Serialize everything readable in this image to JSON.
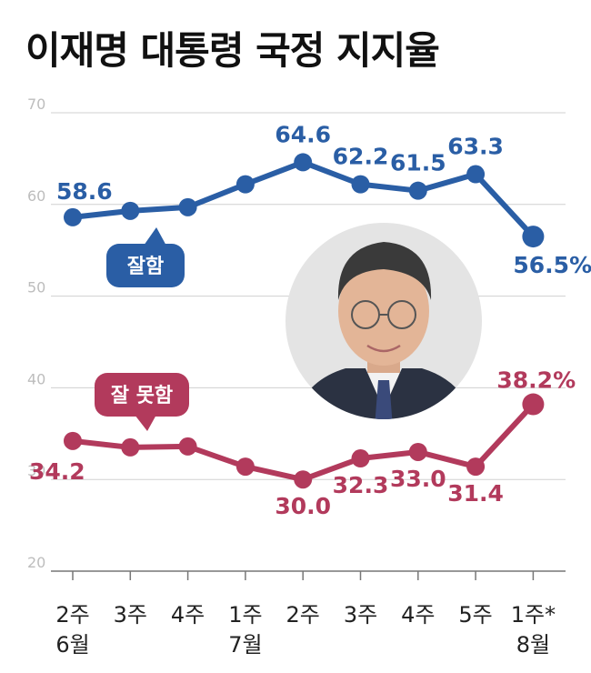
{
  "title": "이재명 대통령 국정 지지율",
  "colors": {
    "good": "#2a5ea5",
    "bad": "#b23a5c",
    "grid": "#d0d0d0",
    "axis": "#777777"
  },
  "chart_data": {
    "type": "line",
    "categories": [
      "2주|6월",
      "3주",
      "4주",
      "1주|7월",
      "2주",
      "3주",
      "4주",
      "5주",
      "1주*|8월"
    ],
    "ylim": [
      20,
      70
    ],
    "yticks": [
      20,
      30,
      40,
      50,
      60,
      70
    ],
    "grid": true,
    "series": [
      {
        "name": "잘함",
        "color": "#2a5ea5",
        "values": [
          58.6,
          59.3,
          59.7,
          62.2,
          64.6,
          62.2,
          61.5,
          63.3,
          56.5
        ],
        "labels": [
          "58.6",
          "",
          "",
          "",
          "64.6",
          "62.2",
          "61.5",
          "63.3",
          "56.5%"
        ]
      },
      {
        "name": "잘 못함",
        "color": "#b23a5c",
        "values": [
          34.2,
          33.5,
          33.6,
          31.4,
          30.0,
          32.3,
          33.0,
          31.4,
          38.2
        ],
        "labels": [
          "34.2",
          "",
          "",
          "",
          "30.0",
          "32.3",
          "33.0",
          "31.4",
          "38.2%"
        ]
      }
    ]
  },
  "photo": {
    "subject": "portrait",
    "background": "#e4e4e4"
  }
}
